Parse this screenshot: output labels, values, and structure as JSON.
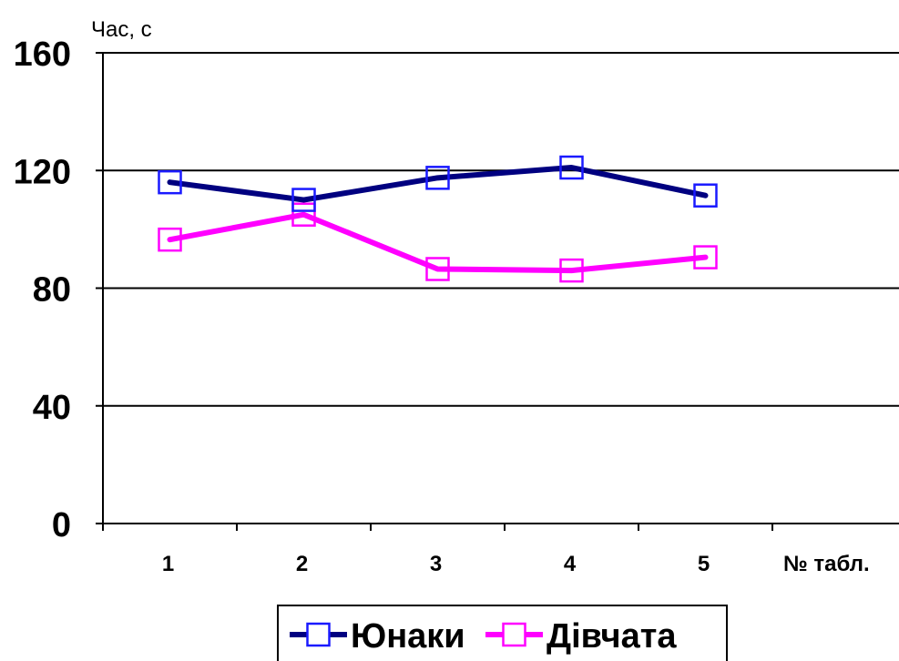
{
  "chart_data": {
    "type": "line",
    "title": "",
    "ylabel": "Час, с",
    "xlabel": "№ табл.",
    "categories": [
      "1",
      "2",
      "3",
      "4",
      "5"
    ],
    "y_ticks": [
      "0",
      "40",
      "80",
      "120",
      "160"
    ],
    "ylim": [
      0,
      160
    ],
    "grid": "horizontal",
    "legend_position": "bottom",
    "marker": "square",
    "series": [
      {
        "name": "Юнаки",
        "color": "#000080",
        "values": [
          116,
          110,
          117.5,
          121,
          111.5
        ]
      },
      {
        "name": "Дівчата",
        "color": "#ff00ff",
        "values": [
          96.5,
          105,
          86.5,
          86,
          90.5
        ]
      }
    ]
  }
}
